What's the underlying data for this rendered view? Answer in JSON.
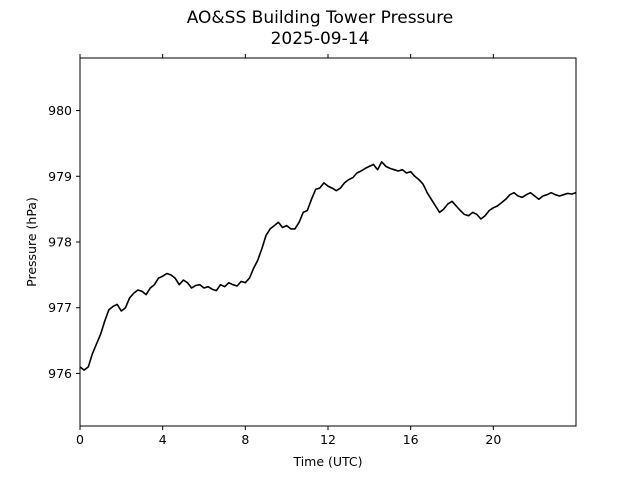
{
  "chart_data": {
    "type": "line",
    "title": "AO&SS Building Tower Pressure",
    "subtitle": "2025-09-14",
    "xlabel": "Time (UTC)",
    "ylabel": "Pressure (hPa)",
    "xlim": [
      0,
      24
    ],
    "ylim": [
      975.2,
      980.8
    ],
    "xticks": [
      0,
      4,
      8,
      12,
      16,
      20
    ],
    "yticks": [
      976,
      977,
      978,
      979,
      980
    ],
    "grid": false,
    "line_color": "#000000",
    "series": [
      {
        "x": [
          0,
          0.2,
          0.4,
          0.6,
          0.8,
          1.0,
          1.2,
          1.4,
          1.6,
          1.8,
          2.0,
          2.2,
          2.4,
          2.6,
          2.8,
          3.0,
          3.2,
          3.4,
          3.6,
          3.8,
          4.0,
          4.2,
          4.4,
          4.6,
          4.8,
          5.0,
          5.2,
          5.4,
          5.6,
          5.8,
          6.0,
          6.2,
          6.4,
          6.6,
          6.8,
          7.0,
          7.2,
          7.4,
          7.6,
          7.8,
          8.0,
          8.2,
          8.4,
          8.6,
          8.8,
          9.0,
          9.2,
          9.4,
          9.6,
          9.8,
          10.0,
          10.2,
          10.4,
          10.6,
          10.8,
          11.0,
          11.2,
          11.4,
          11.6,
          11.8,
          12.0,
          12.2,
          12.4,
          12.6,
          12.8,
          13.0,
          13.2,
          13.4,
          13.6,
          13.8,
          14.0,
          14.2,
          14.4,
          14.6,
          14.8,
          15.0,
          15.2,
          15.4,
          15.6,
          15.8,
          16.0,
          16.2,
          16.4,
          16.6,
          16.8,
          17.0,
          17.2,
          17.4,
          17.6,
          17.8,
          18.0,
          18.2,
          18.4,
          18.6,
          18.8,
          19.0,
          19.2,
          19.4,
          19.6,
          19.8,
          20.0,
          20.2,
          20.4,
          20.6,
          20.8,
          21.0,
          21.2,
          21.4,
          21.6,
          21.8,
          22.0,
          22.2,
          22.4,
          22.6,
          22.8,
          23.0,
          23.2,
          23.4,
          23.6,
          23.8,
          24.0
        ],
        "values": [
          976.1,
          976.05,
          976.1,
          976.3,
          976.45,
          976.6,
          976.8,
          976.97,
          977.02,
          977.05,
          976.95,
          977.0,
          977.15,
          977.22,
          977.27,
          977.25,
          977.2,
          977.3,
          977.35,
          977.45,
          977.48,
          977.52,
          977.5,
          977.45,
          977.35,
          977.42,
          977.38,
          977.3,
          977.34,
          977.35,
          977.3,
          977.32,
          977.28,
          977.26,
          977.35,
          977.32,
          977.38,
          977.35,
          977.33,
          977.4,
          977.38,
          977.45,
          977.6,
          977.72,
          977.9,
          978.1,
          978.2,
          978.25,
          978.3,
          978.22,
          978.25,
          978.2,
          978.2,
          978.3,
          978.45,
          978.48,
          978.65,
          978.8,
          978.82,
          978.9,
          978.85,
          978.82,
          978.78,
          978.82,
          978.9,
          978.95,
          978.98,
          979.05,
          979.08,
          979.12,
          979.15,
          979.18,
          979.1,
          979.22,
          979.15,
          979.12,
          979.1,
          979.08,
          979.1,
          979.05,
          979.07,
          979.0,
          978.95,
          978.88,
          978.75,
          978.65,
          978.55,
          978.45,
          978.5,
          978.58,
          978.62,
          978.55,
          978.48,
          978.42,
          978.4,
          978.45,
          978.42,
          978.35,
          978.4,
          978.48,
          978.52,
          978.55,
          978.6,
          978.65,
          978.72,
          978.75,
          978.7,
          978.68,
          978.72,
          978.75,
          978.7,
          978.65,
          978.7,
          978.72,
          978.75,
          978.72,
          978.7,
          978.72,
          978.74,
          978.73,
          978.75
        ]
      }
    ]
  }
}
